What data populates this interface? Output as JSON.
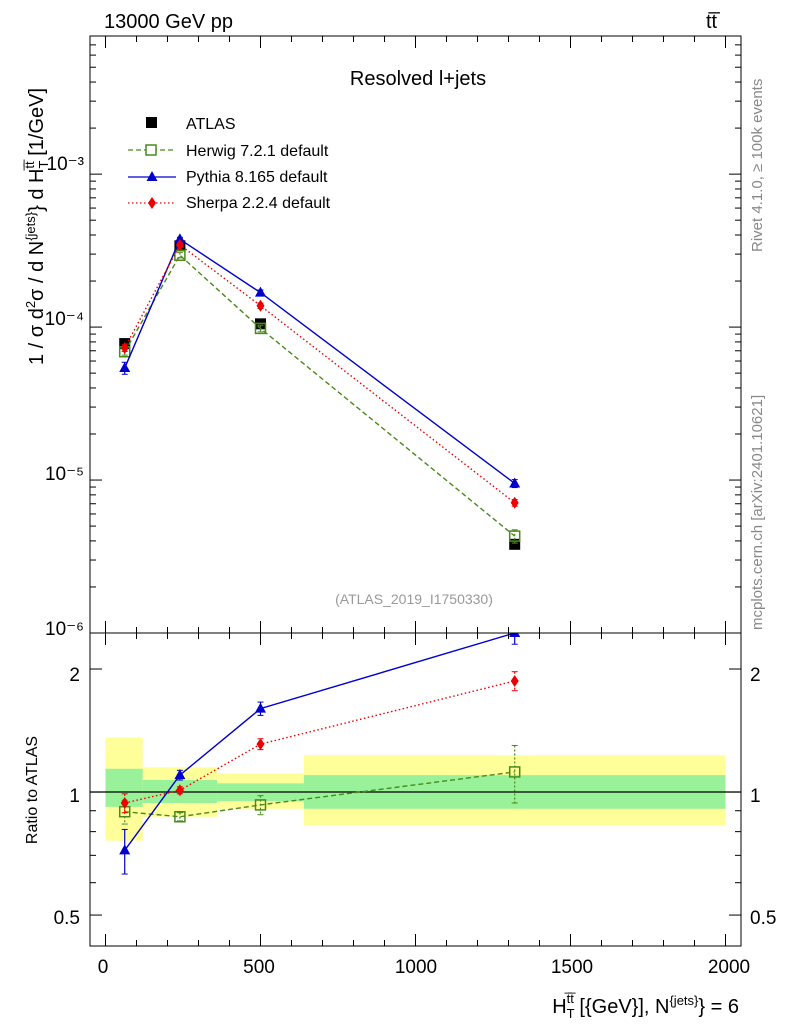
{
  "header": {
    "energy_label": "13000 GeV pp",
    "process_label": "tt̅"
  },
  "side_labels": {
    "rivet": "Rivet 4.1.0, ≥ 100k events",
    "mcplots": "mcplots.cern.ch [arXiv:2401.10621]"
  },
  "chart_data": [
    {
      "panel": "main",
      "type": "line",
      "title": "Resolved l+jets",
      "analysis_id": "(ATLAS_2019_I1750330)",
      "ylabel_parts": {
        "pre": "1 / σ d",
        "sup1": "2",
        "mid": "σ / d N",
        "sup2": "{jets}",
        "mid2": "} d H",
        "sub": "T",
        "sup3": "t̅t̅",
        "post": " [1/GeV]"
      },
      "yscale": "log",
      "ylim": [
        1e-06,
        0.008
      ],
      "xlim": [
        -50,
        2050
      ],
      "y_tick_labels": [
        "10⁻⁶",
        "10⁻⁵",
        "10⁻⁴",
        "10⁻³"
      ],
      "legend_position": "top-left",
      "series": [
        {
          "name": "ATLAS",
          "style": "square-filled",
          "color": "#000000",
          "x": [
            62,
            240,
            500,
            1320
          ],
          "y": [
            7.8e-05,
            0.00034,
            0.000105,
            3.8e-06
          ],
          "yerr": [
            0.04,
            0.04,
            0.04,
            0.04
          ]
        },
        {
          "name": "Herwig 7.2.1 default",
          "style": "square-open-dashed",
          "color": "#4a8a1c",
          "x": [
            62,
            240,
            500,
            1320
          ],
          "y": [
            6.9e-05,
            0.000295,
            9.8e-05,
            4.3e-06
          ],
          "yerr": [
            0.05,
            0.04,
            0.05,
            0.1
          ]
        },
        {
          "name": "Pythia 8.165 default",
          "style": "triangle-solid",
          "color": "#0000cc",
          "x": [
            62,
            240,
            500,
            1320
          ],
          "y": [
            5.4e-05,
            0.000375,
            0.000168,
            9.5e-06
          ],
          "yerr": [
            0.09,
            0.03,
            0.04,
            0.06
          ]
        },
        {
          "name": "Sherpa 2.2.4 default",
          "style": "diamond-dotted",
          "color": "#ee0000",
          "x": [
            62,
            240,
            500,
            1320
          ],
          "y": [
            7.3e-05,
            0.000345,
            0.000138,
            7.1e-06
          ],
          "yerr": [
            0.05,
            0.03,
            0.04,
            0.05
          ]
        }
      ]
    },
    {
      "panel": "ratio",
      "type": "line",
      "ylabel": "Ratio to ATLAS",
      "xlabel_parts": {
        "pre": "H",
        "sub": "T",
        "sup": "t̅t̅",
        "mid": " [{GeV}], N",
        "sup2": "{jets}",
        "post": "} = 6"
      },
      "yscale": "log",
      "ylim": [
        0.42,
        2.45
      ],
      "xlim": [
        -50,
        2050
      ],
      "y_ticks": [
        0.5,
        1,
        2
      ],
      "y_tick_labels": [
        "0.5",
        "1",
        "2"
      ],
      "x_ticks": [
        0,
        500,
        1000,
        1500,
        2000
      ],
      "x_tick_labels": [
        "0",
        "500",
        "1000",
        "1500",
        "2000"
      ],
      "bands": [
        {
          "x0": 0,
          "x1": 120,
          "stat": [
            0.92,
            1.14
          ],
          "total": [
            0.76,
            1.36
          ]
        },
        {
          "x0": 120,
          "x1": 360,
          "stat": [
            0.94,
            1.07
          ],
          "total": [
            0.87,
            1.15
          ]
        },
        {
          "x0": 360,
          "x1": 640,
          "stat": [
            0.95,
            1.05
          ],
          "total": [
            0.91,
            1.11
          ]
        },
        {
          "x0": 640,
          "x1": 2000,
          "stat": [
            0.91,
            1.1
          ],
          "total": [
            0.83,
            1.23
          ]
        }
      ],
      "series": [
        {
          "name": "Herwig 7.2.1 default",
          "style": "square-open-dashed",
          "color": "#4a8a1c",
          "x": [
            62,
            240,
            500,
            1320
          ],
          "y": [
            0.895,
            0.87,
            0.93,
            1.12
          ],
          "err": [
            0.06,
            0.02,
            0.05,
            0.18
          ]
        },
        {
          "name": "Pythia 8.165 default",
          "style": "triangle-solid",
          "color": "#0000cc",
          "x": [
            62,
            240,
            500,
            1320
          ],
          "y": [
            0.72,
            1.1,
            1.6,
            2.45
          ],
          "err": [
            0.09,
            0.03,
            0.06,
            0.15
          ]
        },
        {
          "name": "Sherpa 2.2.4 default",
          "style": "diamond-dotted",
          "color": "#ee0000",
          "x": [
            62,
            240,
            500,
            1320
          ],
          "y": [
            0.94,
            1.01,
            1.31,
            1.87
          ],
          "err": [
            0.05,
            0.02,
            0.04,
            0.1
          ]
        }
      ]
    }
  ]
}
